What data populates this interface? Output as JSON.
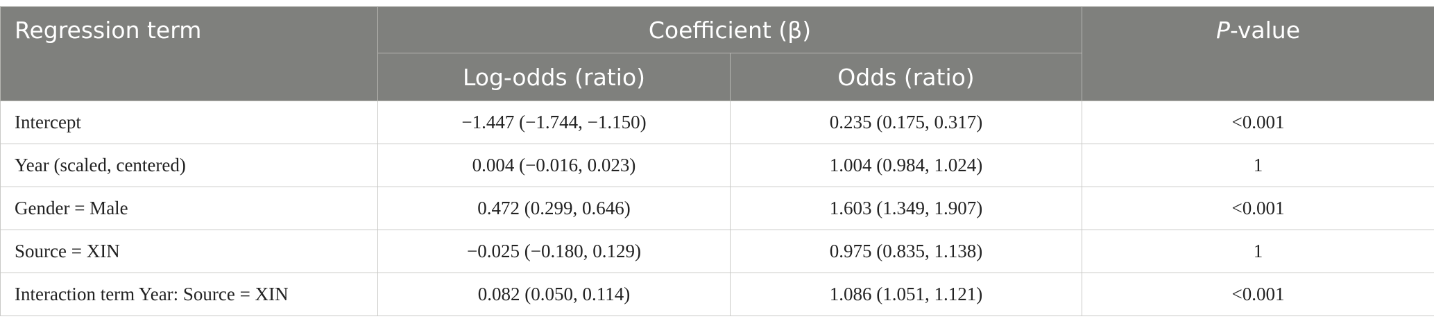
{
  "header": {
    "term": "Regression term",
    "group": "Coefficient (β)",
    "pvalue": [
      "P",
      "-value"
    ],
    "sub": [
      "Log-odds (ratio)",
      "Odds (ratio)"
    ]
  },
  "table": {
    "rows": [
      [
        "Intercept",
        "−1.447 (−1.744, −1.150)",
        "0.235 (0.175, 0.317)",
        "<0.001"
      ],
      [
        "Year (scaled, centered)",
        "0.004 (−0.016, 0.023)",
        "1.004 (0.984, 1.024)",
        "1"
      ],
      [
        "Gender = Male",
        "0.472 (0.299, 0.646)",
        "1.603 (1.349, 1.907)",
        "<0.001"
      ],
      [
        "Source = XIN",
        "−0.025 (−0.180, 0.129)",
        "0.975 (0.835, 1.138)",
        "1"
      ],
      [
        "Interaction term Year: Source = XIN",
        "0.082 (0.050, 0.114)",
        "1.086 (1.051, 1.121)",
        "<0.001"
      ]
    ]
  }
}
